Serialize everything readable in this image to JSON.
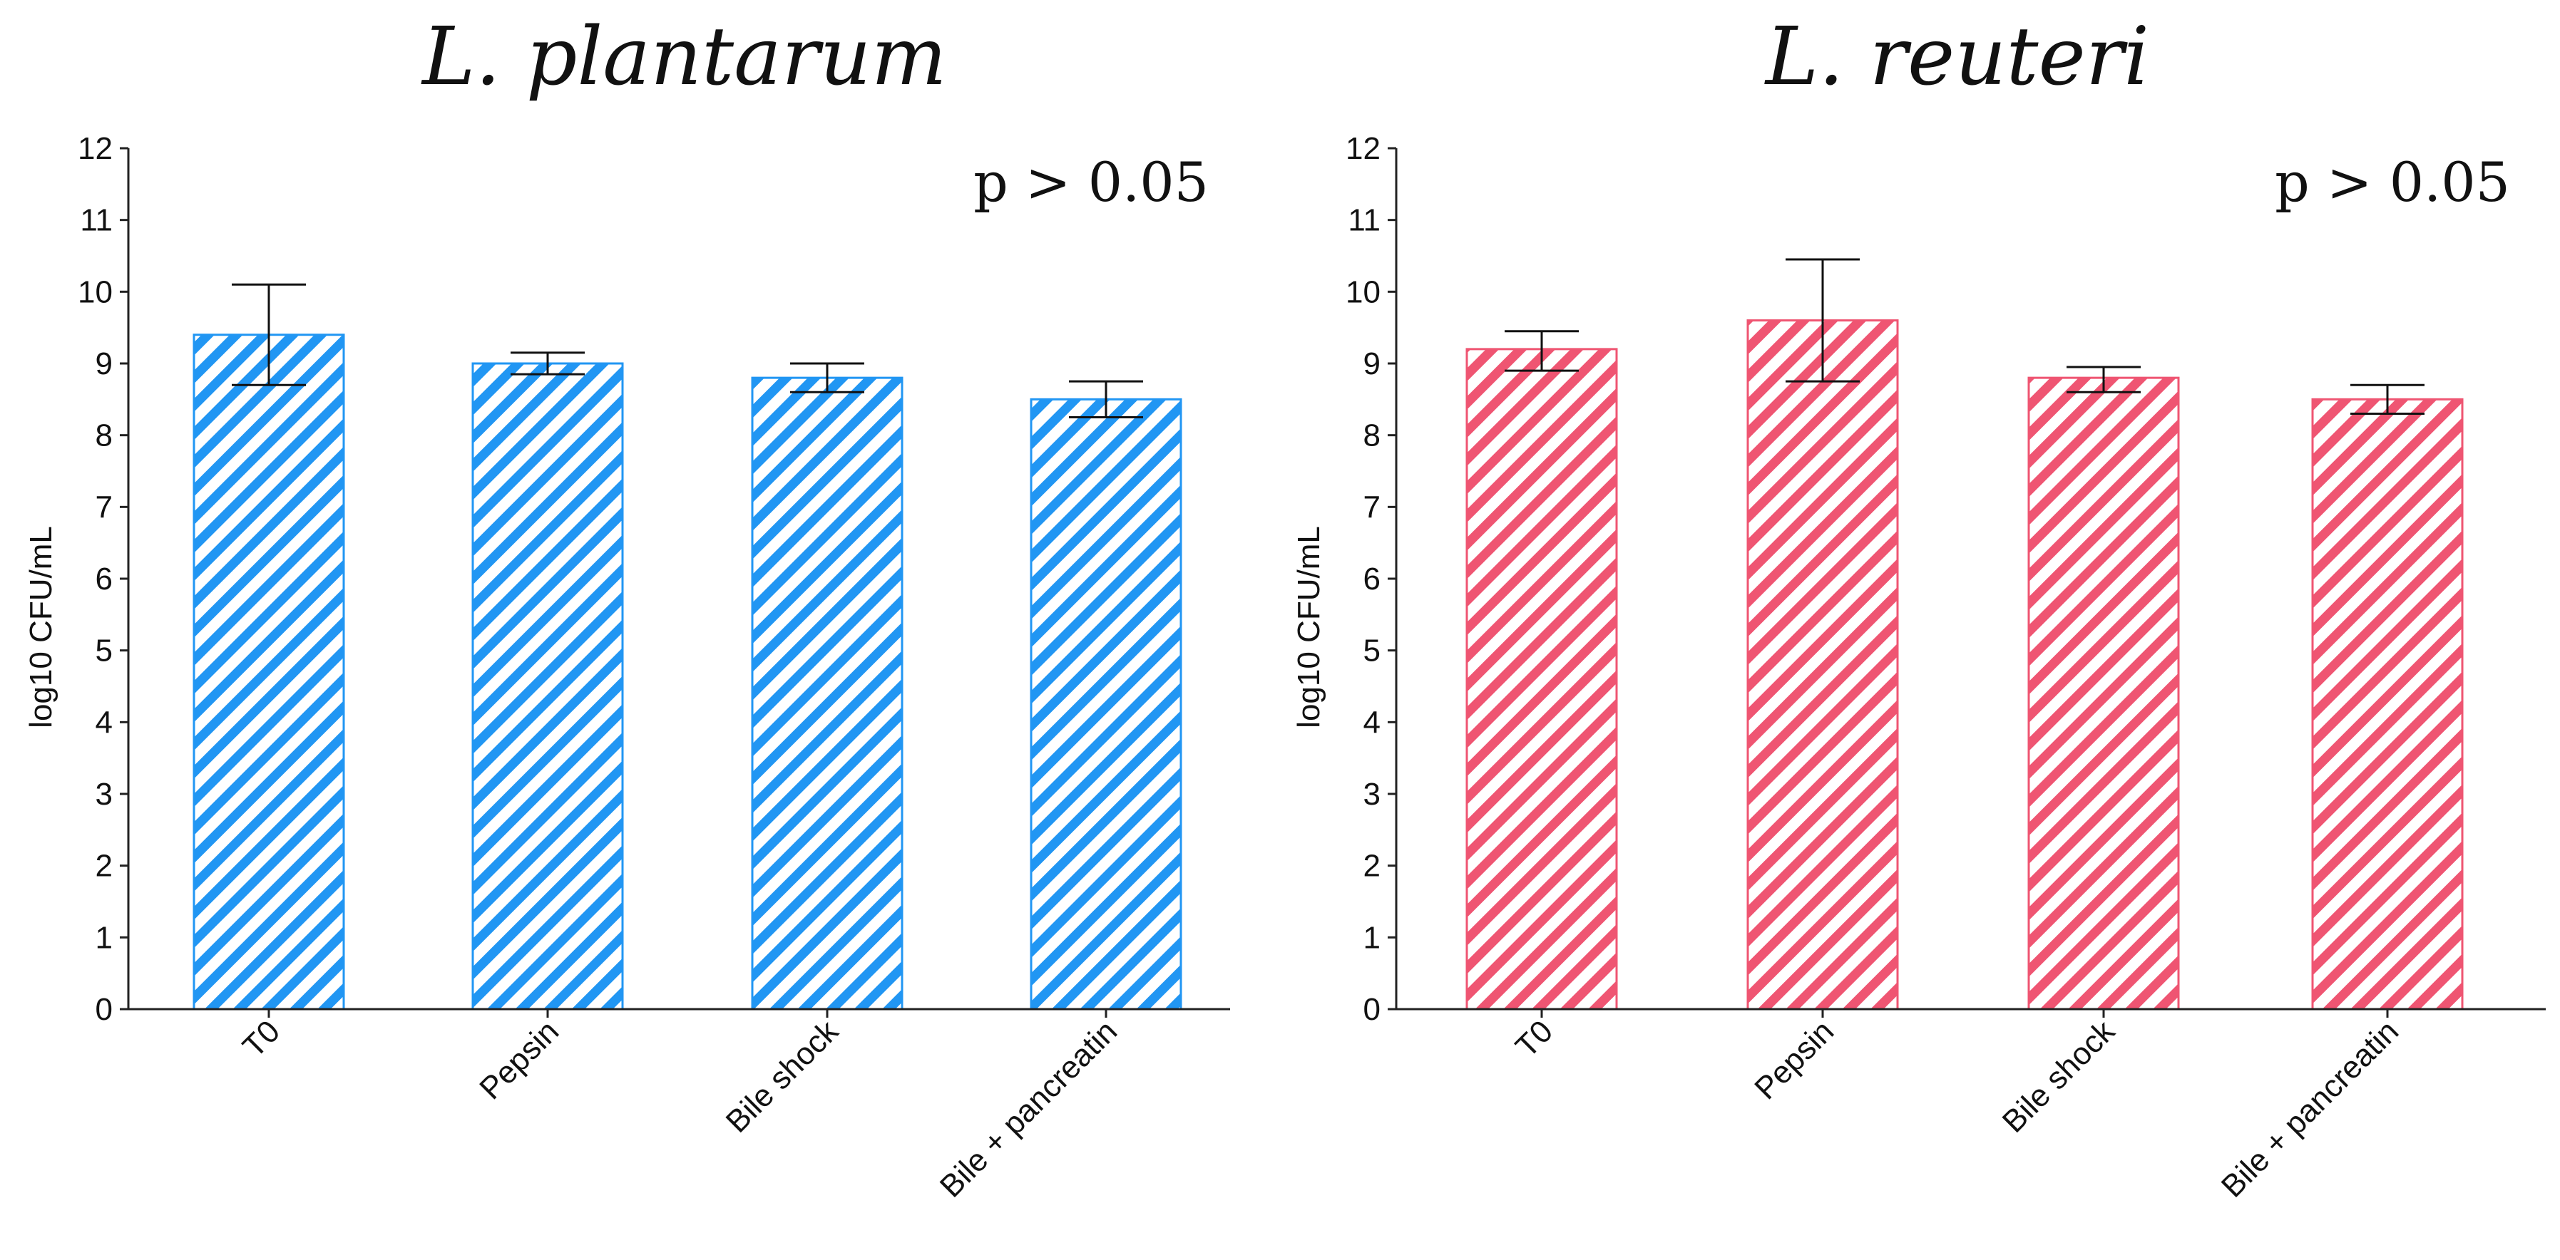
{
  "chart_data": [
    {
      "type": "bar",
      "title": "L. plantarum",
      "annotation": "p > 0.05",
      "xlabel": "",
      "ylabel": "log10 CFU/mL",
      "ylim": [
        0,
        12
      ],
      "yticks": [
        "0",
        "1",
        "2",
        "3",
        "4",
        "5",
        "6",
        "7",
        "8",
        "9",
        "10",
        "11",
        "12"
      ],
      "categories": [
        "T0",
        "Pepsin",
        "Bile shock",
        "Bile + pancreatin"
      ],
      "values": [
        9.4,
        9.0,
        8.8,
        8.5
      ],
      "error_low": [
        8.7,
        8.85,
        8.6,
        8.25
      ],
      "error_high": [
        10.1,
        9.15,
        9.0,
        8.75
      ],
      "bar_color": "#2196f3",
      "bar_fill": "diagonal hatch"
    },
    {
      "type": "bar",
      "title": "L. reuteri",
      "annotation": "p > 0.05",
      "xlabel": "",
      "ylabel": "log10 CFU/mL",
      "ylim": [
        0,
        12
      ],
      "yticks": [
        "0",
        "1",
        "2",
        "3",
        "4",
        "5",
        "6",
        "7",
        "8",
        "9",
        "10",
        "11",
        "12"
      ],
      "categories": [
        "T0",
        "Pepsin",
        "Bile shock",
        "Bile + pancreatin"
      ],
      "values": [
        9.2,
        9.6,
        8.8,
        8.5
      ],
      "error_low": [
        8.9,
        8.75,
        8.6,
        8.3
      ],
      "error_high": [
        9.45,
        10.45,
        8.95,
        8.7
      ],
      "bar_color": "#ef5572",
      "bar_fill": "diagonal hatch"
    }
  ]
}
